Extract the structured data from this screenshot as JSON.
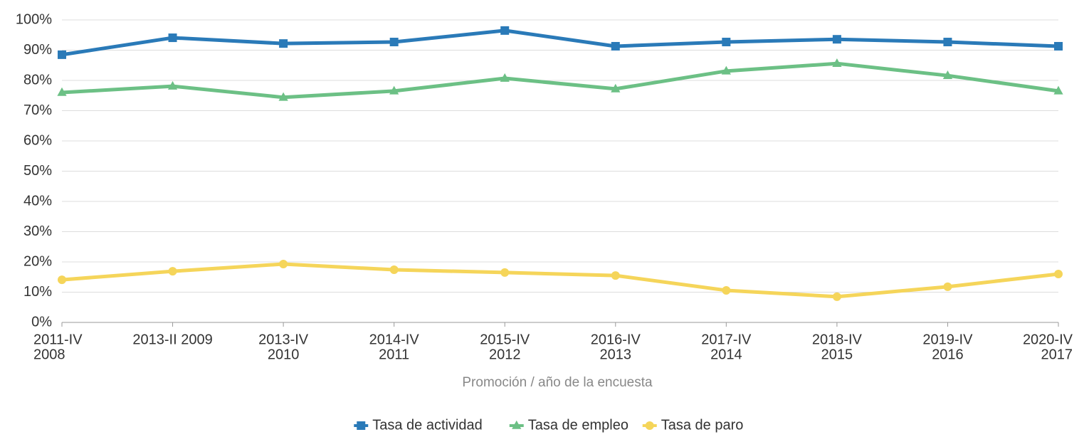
{
  "chart_data": {
    "type": "line",
    "x_label": "Promoción / año de la encuesta",
    "categories": [
      [
        "2011-IV",
        "2008"
      ],
      [
        "2013-II 2009"
      ],
      [
        "2013-IV",
        "2010"
      ],
      [
        "2014-IV",
        "2011"
      ],
      [
        "2015-IV",
        "2012"
      ],
      [
        "2016-IV",
        "2013"
      ],
      [
        "2017-IV",
        "2014"
      ],
      [
        "2018-IV",
        "2015"
      ],
      [
        "2019-IV",
        "2016"
      ],
      [
        "2020-IV",
        "2017"
      ]
    ],
    "series": [
      {
        "name": "Tasa de actividad",
        "color": "#2a7ab8",
        "marker": "square",
        "values": [
          88.5,
          94.1,
          92.2,
          92.7,
          96.5,
          91.3,
          92.7,
          93.6,
          92.7,
          91.3
        ]
      },
      {
        "name": "Tasa de empleo",
        "color": "#6cc085",
        "marker": "triangle",
        "values": [
          76.0,
          78.1,
          74.4,
          76.5,
          80.7,
          77.2,
          83.1,
          85.6,
          81.6,
          76.5
        ]
      },
      {
        "name": "Tasa de paro",
        "color": "#f5d55a",
        "marker": "circle",
        "values": [
          14.1,
          16.9,
          19.3,
          17.4,
          16.5,
          15.5,
          10.6,
          8.5,
          11.8,
          16.0
        ]
      }
    ],
    "ylim": [
      0,
      100
    ],
    "yticks": [
      {
        "value": 0,
        "label": "0%"
      },
      {
        "value": 10,
        "label": "10%"
      },
      {
        "value": 20,
        "label": "20%"
      },
      {
        "value": 30,
        "label": "30%"
      },
      {
        "value": 40,
        "label": "40%"
      },
      {
        "value": 50,
        "label": "50%"
      },
      {
        "value": 60,
        "label": "60%"
      },
      {
        "value": 70,
        "label": "70%"
      },
      {
        "value": 80,
        "label": "80%"
      },
      {
        "value": 90,
        "label": "90%"
      },
      {
        "value": 100,
        "label": "100%"
      }
    ],
    "grid": true,
    "legend": "bottom"
  }
}
